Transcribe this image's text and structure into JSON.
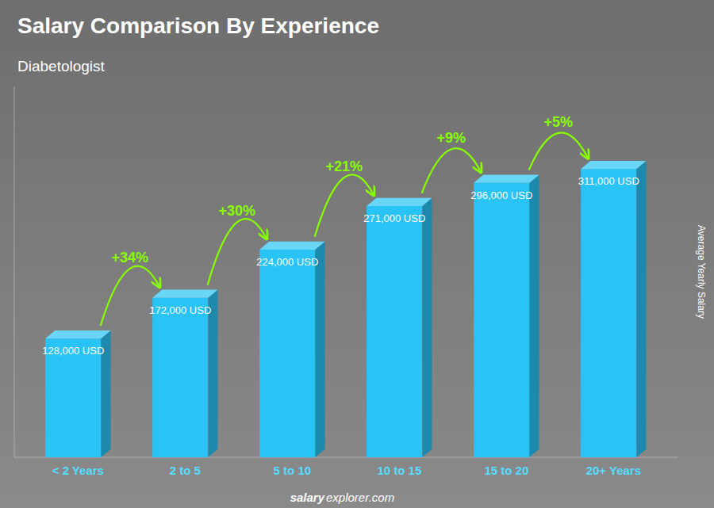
{
  "chart_data": {
    "type": "bar",
    "title": "Salary Comparison By Experience",
    "subtitle": "Diabetologist",
    "y_label": "Average Yearly Salary",
    "categories": [
      "< 2 Years",
      "2 to 5",
      "5 to 10",
      "10 to 15",
      "15 to 20",
      "20+ Years"
    ],
    "values": [
      128000,
      172000,
      224000,
      271000,
      296000,
      311000
    ],
    "value_labels": [
      "128,000 USD",
      "172,000 USD",
      "224,000 USD",
      "271,000 USD",
      "296,000 USD",
      "311,000 USD"
    ],
    "data_labels": true,
    "annotations": [
      "+34%",
      "+30%",
      "+21%",
      "+9%",
      "+5%"
    ],
    "watermark": [
      "salary",
      "explorer.com"
    ],
    "color": "#29C4F5",
    "ylim": [
      0,
      400000
    ],
    "tick_labels": "x",
    "grid": false
  }
}
